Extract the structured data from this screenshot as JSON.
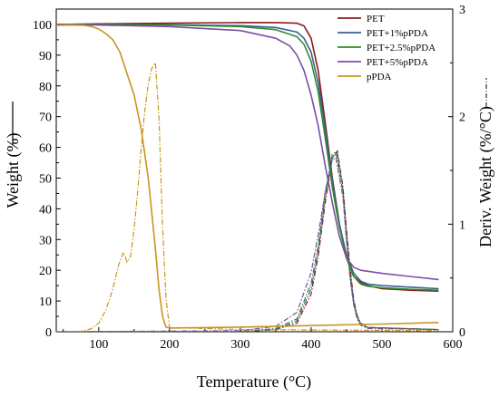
{
  "chart_data": {
    "type": "line",
    "xlabel": "Temperature (°C)",
    "ylabel_left": "Weight (%)",
    "ylabel_right": "Deriv. Weight (%/°C)",
    "xlim": [
      40,
      600
    ],
    "ylim_left": [
      0,
      105
    ],
    "ylim_right": [
      0,
      3
    ],
    "x_ticks": [
      100,
      200,
      300,
      400,
      500,
      600
    ],
    "y_left_ticks": [
      0,
      10,
      20,
      30,
      40,
      50,
      60,
      70,
      80,
      90,
      100
    ],
    "y_right_ticks": [
      0,
      1,
      2,
      3
    ],
    "legend_position": "top-right",
    "series": [
      {
        "name": "PET",
        "color": "#8b1a1a",
        "weight": {
          "x": [
            40,
            100,
            200,
            300,
            350,
            380,
            390,
            400,
            410,
            420,
            430,
            440,
            450,
            460,
            470,
            480,
            500,
            540,
            580
          ],
          "y": [
            100,
            100.2,
            100.4,
            100.6,
            100.6,
            100.4,
            99.5,
            95.5,
            85,
            68,
            50,
            35,
            24,
            18,
            16,
            15,
            14,
            13.5,
            13.2
          ]
        },
        "deriv": {
          "x": [
            40,
            300,
            350,
            380,
            400,
            410,
            420,
            430,
            437,
            445,
            450,
            455,
            460,
            465,
            470,
            480,
            580
          ],
          "y": [
            0,
            0,
            0.02,
            0.08,
            0.35,
            0.7,
            1.2,
            1.62,
            1.68,
            1.35,
            0.95,
            0.6,
            0.3,
            0.15,
            0.08,
            0.04,
            0.02
          ]
        }
      },
      {
        "name": "PET+1%pPDA",
        "color": "#3a5f8f",
        "weight": {
          "x": [
            40,
            100,
            200,
            300,
            350,
            380,
            390,
            400,
            410,
            420,
            430,
            440,
            450,
            460,
            470,
            480,
            500,
            540,
            580
          ],
          "y": [
            100,
            100,
            99.9,
            99.6,
            99,
            97.5,
            95.5,
            91,
            81,
            66,
            49,
            35,
            25,
            19,
            16.5,
            15.5,
            15,
            14.5,
            14
          ]
        },
        "deriv": {
          "x": [
            40,
            300,
            350,
            380,
            400,
            410,
            420,
            430,
            437,
            445,
            450,
            455,
            460,
            465,
            470,
            480,
            580
          ],
          "y": [
            0,
            0,
            0.02,
            0.1,
            0.4,
            0.75,
            1.25,
            1.62,
            1.66,
            1.3,
            0.9,
            0.55,
            0.28,
            0.14,
            0.07,
            0.04,
            0.02
          ]
        }
      },
      {
        "name": "PET+2.5%pPDA",
        "color": "#2e8b2e",
        "weight": {
          "x": [
            40,
            100,
            200,
            300,
            350,
            380,
            390,
            400,
            410,
            420,
            430,
            440,
            450,
            460,
            470,
            480,
            500,
            540,
            580
          ],
          "y": [
            100,
            100,
            99.8,
            99.3,
            98.3,
            96,
            93.5,
            88,
            78,
            63,
            47,
            34,
            24,
            18,
            15.5,
            14.8,
            14.3,
            13.8,
            13.5
          ]
        },
        "deriv": {
          "x": [
            40,
            300,
            350,
            380,
            400,
            410,
            420,
            430,
            435,
            445,
            450,
            455,
            460,
            465,
            470,
            480,
            580
          ],
          "y": [
            0,
            0,
            0.03,
            0.12,
            0.45,
            0.8,
            1.3,
            1.65,
            1.67,
            1.3,
            0.88,
            0.52,
            0.26,
            0.13,
            0.07,
            0.04,
            0.02
          ]
        }
      },
      {
        "name": "PET+5%pPDA",
        "color": "#7b4ea3",
        "weight": {
          "x": [
            40,
            100,
            200,
            300,
            350,
            370,
            380,
            390,
            400,
            410,
            420,
            430,
            440,
            450,
            460,
            470,
            500,
            540,
            580
          ],
          "y": [
            100,
            99.8,
            99.3,
            98,
            95.5,
            93,
            90,
            85,
            77,
            67,
            54,
            42,
            31,
            24,
            21,
            20,
            19,
            18,
            17
          ]
        },
        "deriv": {
          "x": [
            40,
            300,
            350,
            380,
            400,
            410,
            420,
            430,
            435,
            445,
            450,
            455,
            460,
            465,
            470,
            480,
            580
          ],
          "y": [
            0,
            0.01,
            0.05,
            0.18,
            0.55,
            0.9,
            1.3,
            1.6,
            1.62,
            1.25,
            0.85,
            0.5,
            0.25,
            0.12,
            0.06,
            0.03,
            0.02
          ]
        }
      },
      {
        "name": "pPDA",
        "color": "#c8961e",
        "weight": {
          "x": [
            40,
            60,
            80,
            90,
            100,
            110,
            120,
            130,
            140,
            150,
            160,
            170,
            180,
            185,
            190,
            195,
            200,
            300,
            400,
            500,
            580
          ],
          "y": [
            99.7,
            99.8,
            99.7,
            99.3,
            98.5,
            97,
            95,
            91,
            84,
            77,
            66,
            50,
            27,
            14,
            5,
            1.5,
            1.2,
            1.5,
            2,
            2.5,
            3
          ]
        },
        "deriv": {
          "x": [
            40,
            70,
            80,
            90,
            100,
            110,
            120,
            128,
            135,
            140,
            145,
            150,
            155,
            160,
            165,
            170,
            175,
            180,
            185,
            190,
            195,
            200,
            300,
            580
          ],
          "y": [
            0,
            0,
            0.01,
            0.03,
            0.08,
            0.2,
            0.4,
            0.62,
            0.74,
            0.65,
            0.7,
            0.95,
            1.3,
            1.7,
            2.05,
            2.3,
            2.45,
            2.5,
            2.0,
            1.0,
            0.3,
            0.04,
            0.02,
            0.01
          ]
        }
      }
    ]
  }
}
